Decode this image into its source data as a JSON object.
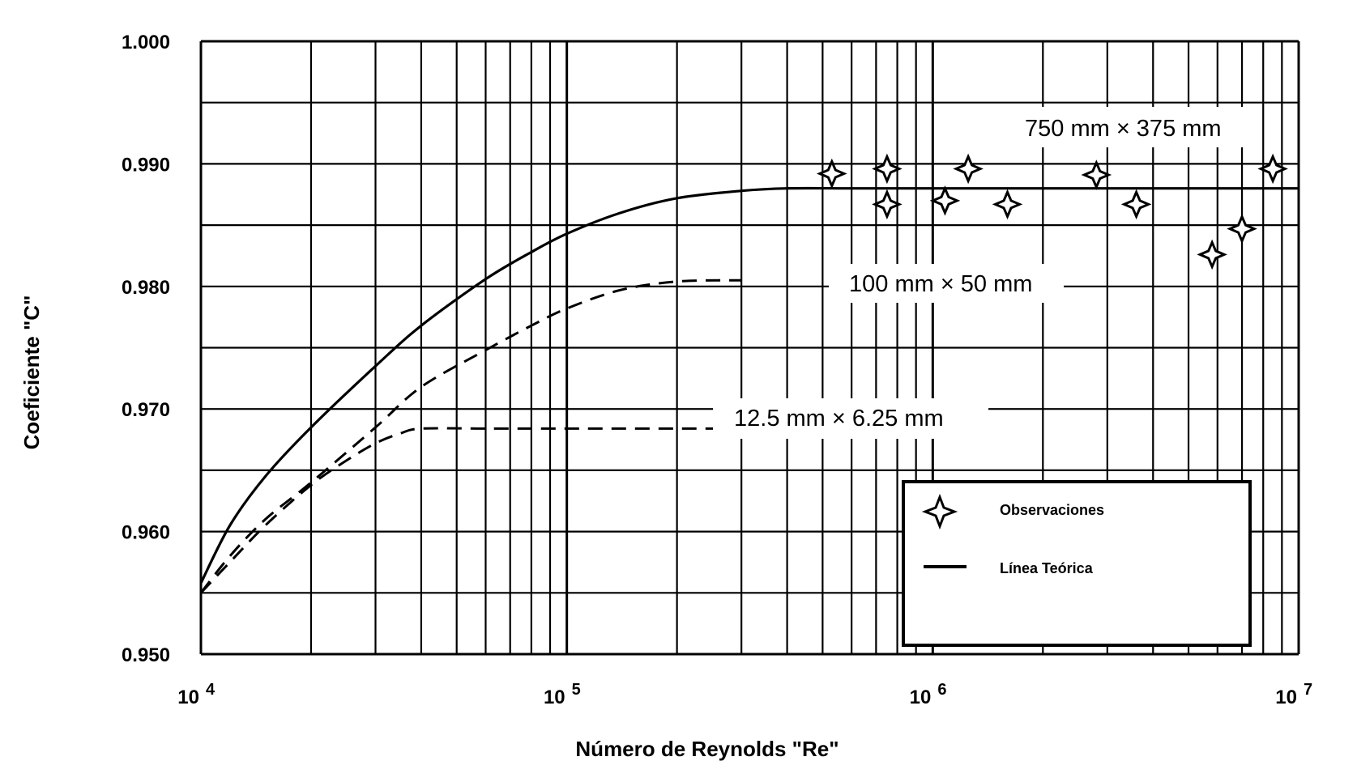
{
  "chart_data": {
    "type": "line",
    "xlabel": "Número de Reynolds \"Re\"",
    "ylabel": "Coeficiente \"C\"",
    "x_scale": "log",
    "xlim": [
      10000,
      10000000
    ],
    "ylim": [
      0.95,
      1.0
    ],
    "grid": true,
    "y_ticks": [
      "0.950",
      "0.960",
      "0.970",
      "0.980",
      "0.990",
      "1.000"
    ],
    "x_ticks": [
      {
        "value": 10000,
        "base": "10",
        "exp": "4"
      },
      {
        "value": 100000,
        "base": "10",
        "exp": "5"
      },
      {
        "value": 1000000,
        "base": "10",
        "exp": "6"
      },
      {
        "value": 10000000,
        "base": "10",
        "exp": "7"
      }
    ],
    "series": [
      {
        "name": "750 mm × 375 mm",
        "style": "solid",
        "x": [
          10000,
          12000,
          15000,
          20000,
          30000,
          40000,
          60000,
          80000,
          100000,
          140000,
          200000,
          300000,
          400000,
          600000,
          1000000,
          10000000
        ],
        "y": [
          0.9558,
          0.9605,
          0.9645,
          0.9685,
          0.9735,
          0.9768,
          0.9806,
          0.9828,
          0.9843,
          0.986,
          0.9872,
          0.9878,
          0.988,
          0.988,
          0.988,
          0.988
        ]
      },
      {
        "name": "100 mm × 50 mm",
        "style": "dashed",
        "x": [
          10000,
          12000,
          15000,
          20000,
          30000,
          40000,
          60000,
          80000,
          100000,
          140000,
          200000,
          300000
        ],
        "y": [
          0.955,
          0.958,
          0.961,
          0.964,
          0.9685,
          0.9718,
          0.9748,
          0.9768,
          0.9782,
          0.9797,
          0.9804,
          0.9805
        ]
      },
      {
        "name": "12.5 mm × 6.25 mm",
        "style": "dashed",
        "x": [
          10000,
          12000,
          15000,
          20000,
          25000,
          30000,
          35000,
          40000,
          60000,
          100000,
          200000,
          400000
        ],
        "y": [
          0.955,
          0.9575,
          0.9605,
          0.9638,
          0.9658,
          0.9672,
          0.968,
          0.9684,
          0.9684,
          0.9684,
          0.9684,
          0.9684
        ]
      }
    ],
    "observations": {
      "name": "Observaciones",
      "points": [
        {
          "x": 530000,
          "y": 0.9892
        },
        {
          "x": 750000,
          "y": 0.9896
        },
        {
          "x": 750000,
          "y": 0.9867
        },
        {
          "x": 1080000,
          "y": 0.987
        },
        {
          "x": 1250000,
          "y": 0.9896
        },
        {
          "x": 1600000,
          "y": 0.9867
        },
        {
          "x": 2800000,
          "y": 0.9891
        },
        {
          "x": 3600000,
          "y": 0.9867
        },
        {
          "x": 5800000,
          "y": 0.9826
        },
        {
          "x": 7000000,
          "y": 0.9847
        },
        {
          "x": 8500000,
          "y": 0.9896
        }
      ]
    },
    "annotations": [
      {
        "text": "750 mm × 375 mm",
        "series": 0
      },
      {
        "text": "100 mm × 50 mm",
        "series": 1
      },
      {
        "text": "12.5 mm × 6.25 mm",
        "series": 2
      }
    ],
    "legend": {
      "position": "bottom-right",
      "entries": [
        {
          "label": "Observaciones",
          "marker": "star-icon"
        },
        {
          "label": "Línea Teórica",
          "marker": "line"
        }
      ]
    }
  }
}
